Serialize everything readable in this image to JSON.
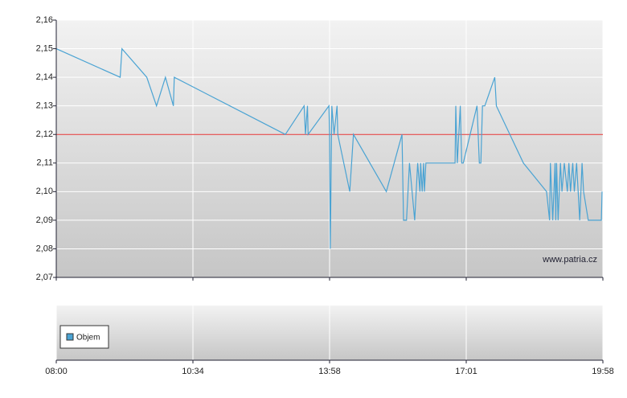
{
  "chart_data": {
    "type": "line",
    "x": [
      "08:00",
      "09:12",
      "09:14",
      "09:42",
      "09:53",
      "10:03",
      "10:12",
      "10:13",
      "12:52",
      "13:20",
      "13:22",
      "13:25",
      "13:26",
      "13:57",
      "13:58",
      "13:59",
      "14:01",
      "14:04",
      "14:08",
      "14:09",
      "14:25",
      "14:30",
      "15:14",
      "15:35",
      "15:37",
      "15:41",
      "15:45",
      "15:52",
      "15:56",
      "15:59",
      "16:00",
      "16:02",
      "16:04",
      "16:05",
      "16:07",
      "16:46",
      "16:47",
      "16:49",
      "16:53",
      "16:55",
      "16:57",
      "17:15",
      "17:18",
      "17:20",
      "17:22",
      "17:25",
      "17:38",
      "17:40",
      "18:15",
      "18:45",
      "18:49",
      "18:50",
      "18:53",
      "18:56",
      "18:57",
      "18:58",
      "19:00",
      "19:03",
      "19:05",
      "19:08",
      "19:12",
      "19:14",
      "19:16",
      "19:19",
      "19:21",
      "19:24",
      "19:28",
      "19:31",
      "19:33",
      "19:39",
      "19:56",
      "19:57"
    ],
    "series": [
      {
        "name": "Objem",
        "color": "#4aa3d3",
        "values": [
          2.15,
          2.14,
          2.15,
          2.14,
          2.13,
          2.14,
          2.13,
          2.14,
          2.12,
          2.13,
          2.12,
          2.13,
          2.12,
          2.13,
          2.12,
          2.08,
          2.13,
          2.12,
          2.13,
          2.12,
          2.1,
          2.12,
          2.1,
          2.12,
          2.09,
          2.09,
          2.11,
          2.09,
          2.11,
          2.1,
          2.11,
          2.1,
          2.11,
          2.1,
          2.11,
          2.11,
          2.13,
          2.11,
          2.13,
          2.11,
          2.11,
          2.13,
          2.11,
          2.11,
          2.13,
          2.13,
          2.14,
          2.13,
          2.11,
          2.1,
          2.09,
          2.11,
          2.09,
          2.11,
          2.09,
          2.11,
          2.09,
          2.11,
          2.1,
          2.11,
          2.1,
          2.11,
          2.1,
          2.11,
          2.1,
          2.11,
          2.09,
          2.11,
          2.1,
          2.09,
          2.09,
          2.1
        ]
      }
    ],
    "reference_line": {
      "value": 2.12,
      "color": "#e03030"
    },
    "ylim": [
      2.07,
      2.16
    ],
    "yticks": [
      {
        "value": 2.07,
        "label": "2,07"
      },
      {
        "value": 2.08,
        "label": "2,08"
      },
      {
        "value": 2.09,
        "label": "2,09"
      },
      {
        "value": 2.1,
        "label": "2,10"
      },
      {
        "value": 2.11,
        "label": "2,11"
      },
      {
        "value": 2.12,
        "label": "2,12"
      },
      {
        "value": 2.13,
        "label": "2,13"
      },
      {
        "value": 2.14,
        "label": "2,14"
      },
      {
        "value": 2.15,
        "label": "2,15"
      },
      {
        "value": 2.16,
        "label": "2,16"
      }
    ],
    "xticks": [
      "08:00",
      "10:34",
      "13:58",
      "17:01",
      "19:58"
    ],
    "watermark": "www.patria.cz",
    "grid": true
  }
}
